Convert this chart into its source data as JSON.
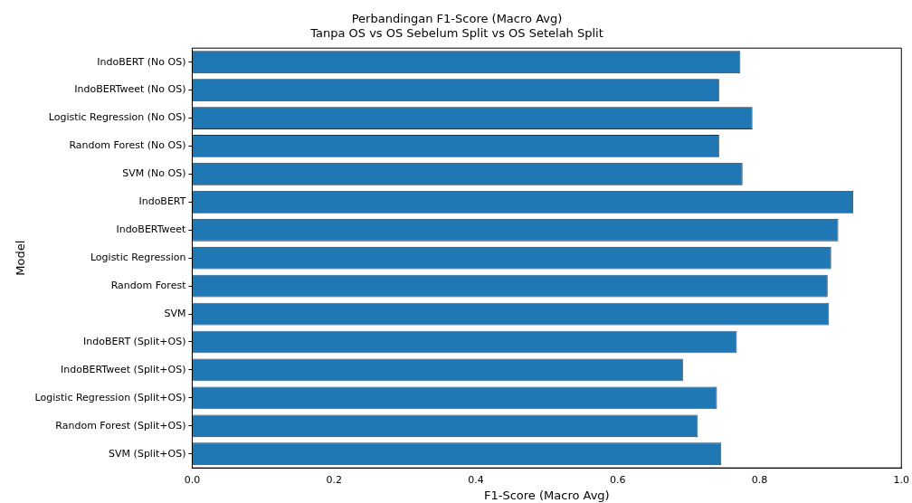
{
  "chart_data": {
    "type": "bar",
    "orientation": "horizontal",
    "title": "Perbandingan F1-Score (Macro Avg)",
    "subtitle": "Tanpa OS vs OS Sebelum Split vs OS Setelah Split",
    "xlabel": "F1-Score (Macro Avg)",
    "ylabel": "Model",
    "categories": [
      "IndoBERT (No OS)",
      "IndoBERTweet (No OS)",
      "Logistic Regression (No OS)",
      "Random Forest (No OS)",
      "SVM (No OS)",
      "IndoBERT",
      "IndoBERTweet",
      "Logistic Regression",
      "Random Forest",
      "SVM",
      "IndoBERT (Split+OS)",
      "IndoBERTweet (Split+OS)",
      "Logistic Regression (Split+OS)",
      "Random Forest (Split+OS)",
      "SVM (Split+OS)"
    ],
    "values": [
      0.773,
      0.743,
      0.79,
      0.743,
      0.776,
      0.932,
      0.911,
      0.901,
      0.896,
      0.898,
      0.768,
      0.692,
      0.74,
      0.713,
      0.746
    ],
    "color": "#1f77b4",
    "xlim": [
      0,
      1
    ],
    "xticks": [
      {
        "value": 0,
        "label": "0.0"
      },
      0.2,
      0.4,
      0.6,
      0.8,
      {
        "value": 1,
        "label": "1.0"
      }
    ]
  }
}
